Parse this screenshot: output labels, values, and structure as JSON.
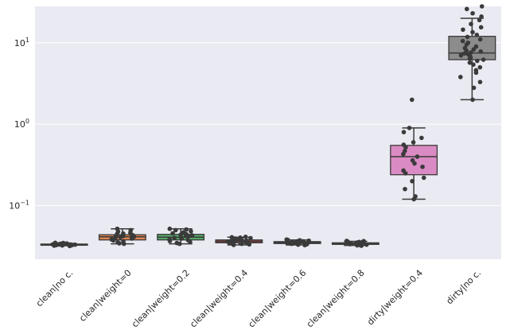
{
  "chart_data": {
    "type": "box",
    "title": "",
    "xlabel": "",
    "ylabel": "",
    "yscale": "log",
    "ylim": [
      0.022,
      28
    ],
    "grid": true,
    "style": {
      "background": "#eaeaf2",
      "grid_color": "#ffffff",
      "point_color": "#3a3a3a",
      "whisker_color": "#3a3a3a"
    },
    "y_ticks": [
      {
        "value": 0.1,
        "label": "10",
        "exp": "−1"
      },
      {
        "value": 1,
        "label": "10",
        "exp": "0"
      },
      {
        "value": 10,
        "label": "10",
        "exp": "1"
      }
    ],
    "categories": [
      "clean|no c.",
      "clean|weight=0",
      "clean|weight=0.2",
      "clean|weight=0.4",
      "clean|weight=0.6",
      "clean|weight=0.8",
      "dirty|weight=0.4",
      "dirty|no c."
    ],
    "boxes": [
      {
        "color": "#4c72b0",
        "whislo": 0.0322,
        "q1": 0.0328,
        "med": 0.0333,
        "q3": 0.0338,
        "whishi": 0.0345,
        "points": [
          0.032,
          0.0323,
          0.0325,
          0.0327,
          0.0328,
          0.033,
          0.0331,
          0.0332,
          0.0333,
          0.0334,
          0.0335,
          0.0336,
          0.0337,
          0.0338,
          0.034,
          0.0342,
          0.0344,
          0.0346,
          0.0348,
          0.035
        ]
      },
      {
        "color": "#dd8452",
        "whislo": 0.034,
        "q1": 0.038,
        "med": 0.0415,
        "q3": 0.044,
        "whishi": 0.052,
        "points": [
          0.034,
          0.0345,
          0.0355,
          0.0365,
          0.0375,
          0.0385,
          0.0395,
          0.0405,
          0.041,
          0.0415,
          0.042,
          0.0425,
          0.0432,
          0.044,
          0.0448,
          0.0455,
          0.0465,
          0.048,
          0.05,
          0.052
        ]
      },
      {
        "color": "#55a868",
        "whislo": 0.034,
        "q1": 0.038,
        "med": 0.041,
        "q3": 0.0445,
        "whishi": 0.052,
        "points": [
          0.034,
          0.0348,
          0.0358,
          0.0368,
          0.0378,
          0.0386,
          0.0395,
          0.0402,
          0.041,
          0.0418,
          0.0425,
          0.0432,
          0.044,
          0.0448,
          0.0458,
          0.047,
          0.0485,
          0.05,
          0.051,
          0.052
        ]
      },
      {
        "color": "#c44e52",
        "whislo": 0.033,
        "q1": 0.035,
        "med": 0.0365,
        "q3": 0.038,
        "whishi": 0.041,
        "points": [
          0.033,
          0.0335,
          0.034,
          0.0345,
          0.035,
          0.0354,
          0.0358,
          0.0362,
          0.0365,
          0.0368,
          0.0372,
          0.0376,
          0.038,
          0.0385,
          0.039,
          0.0395,
          0.04,
          0.0405,
          0.041,
          0.0415
        ]
      },
      {
        "color": "#8172b3",
        "whislo": 0.033,
        "q1": 0.0343,
        "med": 0.0352,
        "q3": 0.0362,
        "whishi": 0.038,
        "points": [
          0.0328,
          0.0332,
          0.0336,
          0.034,
          0.0343,
          0.0346,
          0.0348,
          0.035,
          0.0352,
          0.0354,
          0.0356,
          0.0358,
          0.036,
          0.0362,
          0.0365,
          0.0368,
          0.0372,
          0.0376,
          0.038,
          0.0384
        ]
      },
      {
        "color": "#937860",
        "whislo": 0.0325,
        "q1": 0.0335,
        "med": 0.0342,
        "q3": 0.035,
        "whishi": 0.0365,
        "points": [
          0.0322,
          0.0326,
          0.0329,
          0.0332,
          0.0335,
          0.0337,
          0.0339,
          0.0341,
          0.0342,
          0.0344,
          0.0346,
          0.0348,
          0.035,
          0.0352,
          0.0355,
          0.0358,
          0.0361,
          0.0364,
          0.0367,
          0.037
        ]
      },
      {
        "color": "#da8bc3",
        "whislo": 0.12,
        "q1": 0.24,
        "med": 0.4,
        "q3": 0.55,
        "whishi": 0.9,
        "points": [
          0.12,
          0.13,
          0.16,
          0.2,
          0.22,
          0.25,
          0.27,
          0.3,
          0.33,
          0.36,
          0.4,
          0.43,
          0.47,
          0.52,
          0.56,
          0.6,
          0.68,
          0.8,
          0.9,
          2.0
        ]
      },
      {
        "color": "#8c8c8c",
        "whislo": 2.0,
        "q1": 6.2,
        "med": 7.5,
        "q3": 12.0,
        "whishi": 20.0,
        "points": [
          2.0,
          2.8,
          3.3,
          3.8,
          4.3,
          4.6,
          5.0,
          5.4,
          5.7,
          6.0,
          6.2,
          6.4,
          6.6,
          6.8,
          7.0,
          7.2,
          7.4,
          7.6,
          7.8,
          8.0,
          8.3,
          8.6,
          9.0,
          9.5,
          10.0,
          10.5,
          11.0,
          11.8,
          12.5,
          13.5,
          14.5,
          15.5,
          17.0,
          19.0,
          21.0,
          23.0,
          26.0,
          28.0
        ]
      }
    ]
  }
}
